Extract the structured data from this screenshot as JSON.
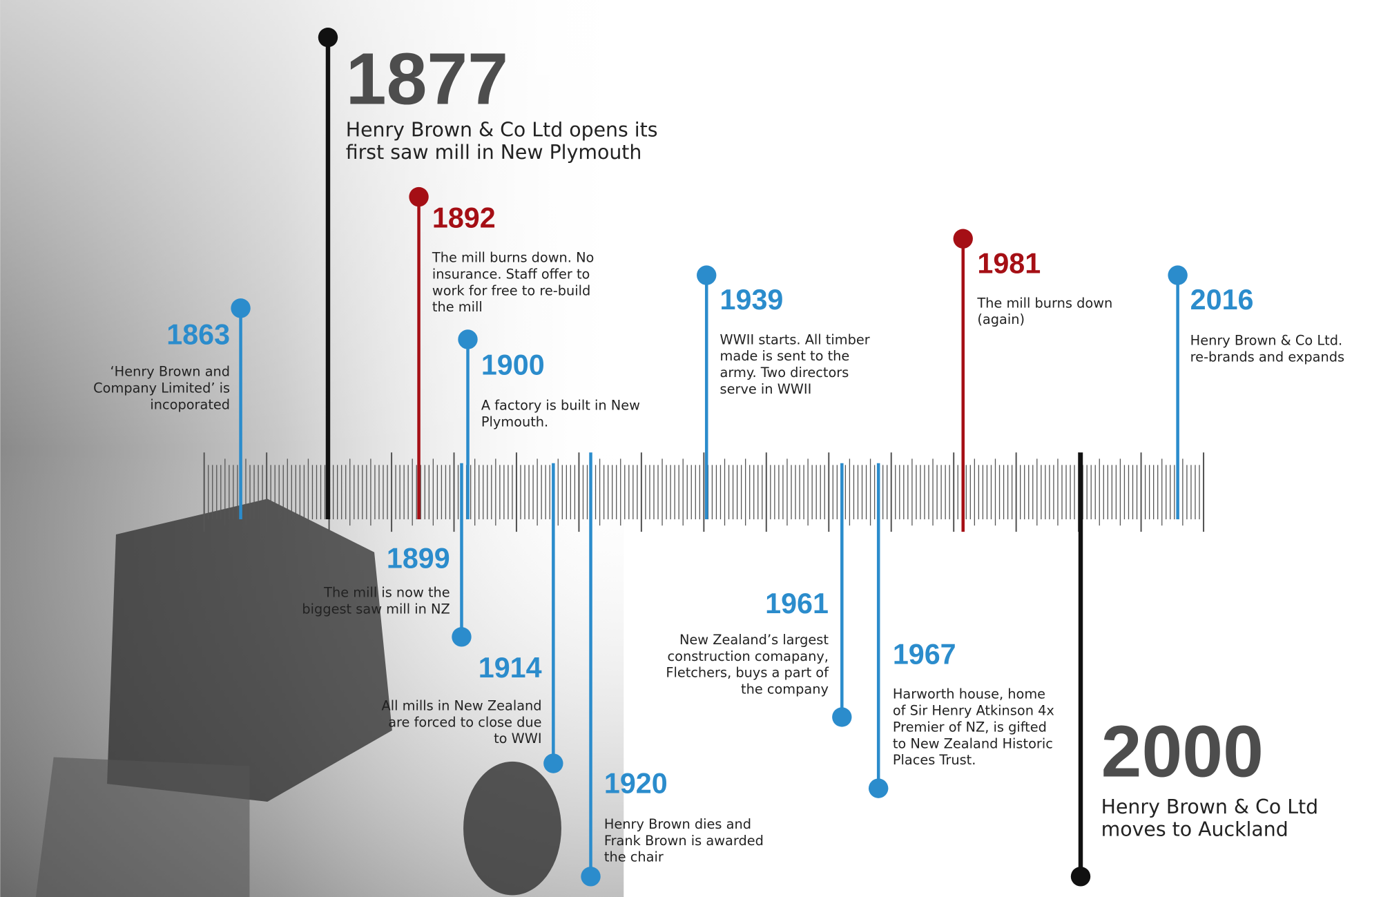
{
  "events": [
    {
      "year": "1863",
      "color": "#2b8ccc",
      "lines": [
        "‘Henry Brown and",
        "Company Limited’ is",
        "incoporated"
      ]
    },
    {
      "year": "1877",
      "color": "#111111",
      "lines": [
        "Henry Brown & Co Ltd opens its",
        "first saw mill in New Plymouth"
      ]
    },
    {
      "year": "1892",
      "color": "#a50f15",
      "lines": [
        "The mill burns down. No",
        "insurance. Staff offer to",
        "work for free to re-build",
        "the mill"
      ]
    },
    {
      "year": "1899",
      "color": "#2b8ccc",
      "lines": [
        "The mill is now the",
        "biggest saw mill in NZ"
      ]
    },
    {
      "year": "1900",
      "color": "#2b8ccc",
      "lines": [
        "A factory is built in New",
        "Plymouth."
      ]
    },
    {
      "year": "1914",
      "color": "#2b8ccc",
      "lines": [
        "All mills in New Zealand",
        "are forced to close due",
        "to WWI"
      ]
    },
    {
      "year": "1920",
      "color": "#2b8ccc",
      "lines": [
        "Henry Brown dies and",
        "Frank Brown is awarded",
        "the chair"
      ]
    },
    {
      "year": "1939",
      "color": "#2b8ccc",
      "lines": [
        "WWII starts. All timber",
        "made is sent to the",
        "army. Two directors",
        "serve in WWII"
      ]
    },
    {
      "year": "1961",
      "color": "#2b8ccc",
      "lines": [
        "New Zealand’s largest",
        "construction comapany,",
        "Fletchers, buys a part of",
        "the company"
      ]
    },
    {
      "year": "1967",
      "color": "#2b8ccc",
      "lines": [
        "Harworth house, home",
        "of Sir Henry Atkinson 4x",
        "Premier of NZ, is gifted",
        "to New Zealand Historic",
        "Places Trust."
      ]
    },
    {
      "year": "1981",
      "color": "#a50f15",
      "lines": [
        "The mill burns down",
        "(again)"
      ]
    },
    {
      "year": "2000",
      "color": "#111111",
      "lines": [
        "Henry Brown & Co Ltd",
        "moves to Auckland"
      ]
    },
    {
      "year": "2016",
      "color": "#2b8ccc",
      "lines": [
        "Henry Brown & Co Ltd.",
        "re-brands and expands"
      ]
    }
  ]
}
